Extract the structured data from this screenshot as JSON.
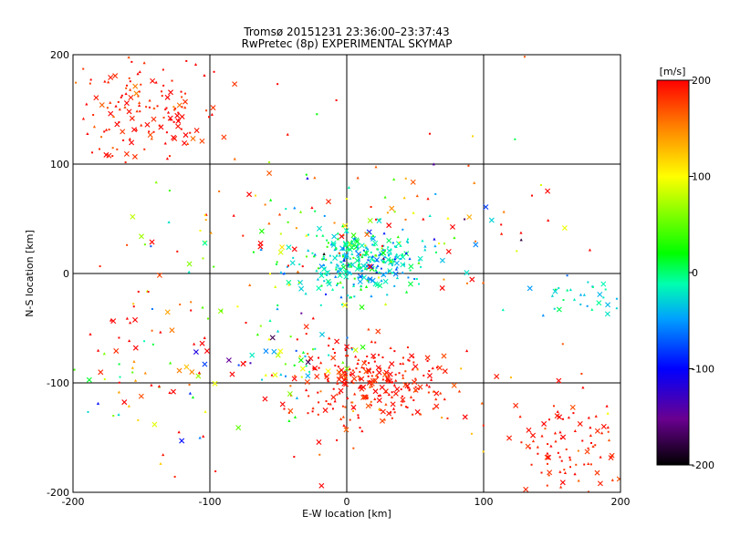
{
  "chart_data": {
    "type": "scatter",
    "title": "Tromsø 20151231 23:36:00–23:37:43",
    "subtitle": "RwPretec (8p) EXPERIMENTAL SKYMAP",
    "xlabel": "E-W location [km]",
    "ylabel": "N-S location [km]",
    "xlim": [
      -200,
      200
    ],
    "ylim": [
      -200,
      200
    ],
    "xticks": [
      -200,
      -100,
      0,
      100,
      200
    ],
    "yticks": [
      -200,
      -100,
      0,
      100,
      200
    ],
    "grid": true,
    "colorbar": {
      "label": "[m/s]",
      "range": [
        -200,
        200
      ],
      "ticks": [
        -200,
        -100,
        0,
        100,
        200
      ],
      "colormap": "black-purple-blue-cyan-green-yellow-red"
    },
    "clusters": [
      {
        "cx": -150,
        "cy": 150,
        "sx": 30,
        "sy": 25,
        "n": 150,
        "vmean": 190,
        "vsd": 15
      },
      {
        "cx": 10,
        "cy": 10,
        "sx": 22,
        "sy": 15,
        "n": 320,
        "vmean": -20,
        "vsd": 30
      },
      {
        "cx": 15,
        "cy": -100,
        "sx": 30,
        "sy": 18,
        "n": 260,
        "vmean": 190,
        "vsd": 15
      },
      {
        "cx": 165,
        "cy": -160,
        "sx": 20,
        "sy": 25,
        "n": 90,
        "vmean": 190,
        "vsd": 15
      },
      {
        "cx": 170,
        "cy": -20,
        "sx": 20,
        "sy": 10,
        "n": 35,
        "vmean": -20,
        "vsd": 20
      },
      {
        "cx": -140,
        "cy": -90,
        "sx": 35,
        "sy": 30,
        "n": 80,
        "vmean": 120,
        "vsd": 110
      },
      {
        "cx": -70,
        "cy": 30,
        "sx": 40,
        "sy": 35,
        "n": 70,
        "vmean": 120,
        "vsd": 100
      },
      {
        "cx": 60,
        "cy": 40,
        "sx": 45,
        "sy": 25,
        "n": 70,
        "vmean": 80,
        "vsd": 130
      },
      {
        "cx": -40,
        "cy": -70,
        "sx": 25,
        "sy": 20,
        "n": 50,
        "vmean": 0,
        "vsd": 90
      },
      {
        "cx": 0,
        "cy": 0,
        "sx": 150,
        "sy": 150,
        "n": 90,
        "vmean": 160,
        "vsd": 70
      }
    ]
  }
}
